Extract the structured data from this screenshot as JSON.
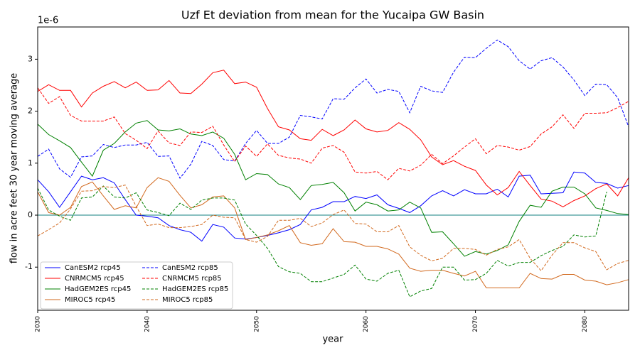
{
  "chart_data": {
    "type": "line",
    "title": "Uzf Et deviation from mean for the Yucaipa GW Basin",
    "x_label": "year",
    "y_label": "flow in acre feet 30 year moving average",
    "y_offset_text": "1e-6",
    "x": [
      2030,
      2031,
      2032,
      2033,
      2034,
      2035,
      2036,
      2037,
      2038,
      2039,
      2040,
      2041,
      2042,
      2043,
      2044,
      2045,
      2046,
      2047,
      2048,
      2049,
      2050,
      2051,
      2052,
      2053,
      2054,
      2055,
      2056,
      2057,
      2058,
      2059,
      2060,
      2061,
      2062,
      2063,
      2064,
      2065,
      2066,
      2067,
      2068,
      2069,
      2070,
      2071,
      2072,
      2073,
      2074,
      2075,
      2076,
      2077,
      2078,
      2079,
      2080,
      2081,
      2082,
      2083,
      2084
    ],
    "xlim": [
      2030,
      2084
    ],
    "xticks": [
      2030,
      2040,
      2050,
      2060,
      2070,
      2080
    ],
    "ylim": [
      -1.83,
      3.62
    ],
    "yticks": [
      -1,
      0,
      1,
      2,
      3
    ],
    "reference_line": 0,
    "reference_color": "#108080",
    "legend_position": "lower left",
    "series": [
      {
        "name": "CanESM2 rcp45",
        "color": "#0000ff",
        "linestyle": "solid",
        "values": [
          0.68,
          0.45,
          0.15,
          0.45,
          0.75,
          0.68,
          0.72,
          0.62,
          0.3,
          0.0,
          -0.02,
          -0.05,
          -0.2,
          -0.28,
          -0.33,
          -0.5,
          -0.18,
          -0.23,
          -0.44,
          -0.46,
          -0.43,
          -0.39,
          -0.34,
          -0.28,
          -0.18,
          0.1,
          0.15,
          0.26,
          0.26,
          0.36,
          0.32,
          0.39,
          0.2,
          0.13,
          0.05,
          0.18,
          0.37,
          0.47,
          0.37,
          0.49,
          0.41,
          0.41,
          0.5,
          0.35,
          0.75,
          0.77,
          0.41,
          0.42,
          0.43,
          0.83,
          0.81,
          0.63,
          0.61,
          0.52,
          0.57
        ]
      },
      {
        "name": "CNRMCM5 rcp45",
        "color": "#ff0000",
        "linestyle": "solid",
        "values": [
          2.38,
          2.51,
          2.4,
          2.4,
          2.08,
          2.35,
          2.48,
          2.57,
          2.45,
          2.56,
          2.4,
          2.41,
          2.59,
          2.35,
          2.34,
          2.52,
          2.74,
          2.79,
          2.53,
          2.56,
          2.46,
          2.05,
          1.7,
          1.64,
          1.47,
          1.44,
          1.65,
          1.53,
          1.64,
          1.83,
          1.66,
          1.6,
          1.63,
          1.78,
          1.65,
          1.45,
          1.12,
          0.97,
          1.05,
          0.94,
          0.86,
          0.58,
          0.39,
          0.53,
          0.84,
          0.57,
          0.31,
          0.27,
          0.16,
          0.28,
          0.37,
          0.51,
          0.6,
          0.37,
          0.72
        ]
      },
      {
        "name": "HadGEM2ES rcp45",
        "color": "#008000",
        "linestyle": "solid",
        "values": [
          1.75,
          1.55,
          1.43,
          1.3,
          1.02,
          0.75,
          1.25,
          1.38,
          1.6,
          1.77,
          1.82,
          1.64,
          1.62,
          1.66,
          1.56,
          1.53,
          1.6,
          1.48,
          1.17,
          0.68,
          0.8,
          0.78,
          0.6,
          0.53,
          0.3,
          0.57,
          0.59,
          0.63,
          0.43,
          0.08,
          0.25,
          0.2,
          0.08,
          0.1,
          0.25,
          0.14,
          -0.33,
          -0.32,
          -0.55,
          -0.79,
          -0.7,
          -0.75,
          -0.68,
          -0.57,
          -0.12,
          0.19,
          0.15,
          0.46,
          0.54,
          0.54,
          0.41,
          0.14,
          0.09,
          0.03,
          0.01
        ]
      },
      {
        "name": "MIROC5 rcp45",
        "color": "#d2691e",
        "linestyle": "solid",
        "values": [
          0.45,
          0.05,
          0.0,
          0.15,
          0.55,
          0.64,
          0.37,
          0.11,
          0.18,
          0.14,
          0.53,
          0.72,
          0.65,
          0.38,
          0.14,
          0.2,
          0.35,
          0.37,
          0.14,
          -0.47,
          -0.43,
          -0.38,
          -0.3,
          -0.2,
          -0.53,
          -0.58,
          -0.55,
          -0.26,
          -0.51,
          -0.52,
          -0.6,
          -0.6,
          -0.65,
          -0.75,
          -1.02,
          -1.08,
          -1.06,
          -1.06,
          -1.12,
          -1.17,
          -1.08,
          -1.4,
          -1.4,
          -1.4,
          -1.4,
          -1.12,
          -1.22,
          -1.23,
          -1.14,
          -1.14,
          -1.25,
          -1.27,
          -1.34,
          -1.3,
          -1.24
        ]
      },
      {
        "name": "CanESM2 rcp85",
        "color": "#0000ff",
        "linestyle": "dashed",
        "values": [
          1.13,
          1.27,
          0.89,
          0.73,
          1.12,
          1.14,
          1.36,
          1.3,
          1.35,
          1.35,
          1.4,
          1.13,
          1.14,
          0.71,
          0.98,
          1.42,
          1.34,
          1.07,
          1.04,
          1.38,
          1.63,
          1.38,
          1.38,
          1.5,
          1.92,
          1.89,
          1.85,
          2.24,
          2.23,
          2.45,
          2.62,
          2.35,
          2.42,
          2.38,
          1.97,
          2.48,
          2.39,
          2.36,
          2.75,
          3.04,
          3.03,
          3.21,
          3.37,
          3.24,
          2.97,
          2.81,
          2.97,
          3.03,
          2.85,
          2.6,
          2.3,
          2.52,
          2.51,
          2.26,
          1.7
        ]
      },
      {
        "name": "CNRMCM5 rcp85",
        "color": "#ff0000",
        "linestyle": "dashed",
        "values": [
          2.45,
          2.15,
          2.28,
          1.92,
          1.81,
          1.81,
          1.81,
          1.89,
          1.57,
          1.44,
          1.28,
          1.62,
          1.39,
          1.34,
          1.6,
          1.59,
          1.71,
          1.35,
          1.03,
          1.33,
          1.13,
          1.37,
          1.15,
          1.1,
          1.08,
          1.0,
          1.29,
          1.34,
          1.21,
          0.83,
          0.81,
          0.84,
          0.68,
          0.9,
          0.85,
          0.96,
          1.17,
          0.99,
          1.14,
          1.31,
          1.47,
          1.18,
          1.34,
          1.31,
          1.25,
          1.32,
          1.56,
          1.7,
          1.93,
          1.67,
          1.96,
          1.96,
          1.97,
          2.07,
          2.19
        ]
      },
      {
        "name": "HadGEM2ES rcp85",
        "color": "#008000",
        "linestyle": "dashed",
        "values": [
          0.52,
          0.1,
          -0.02,
          -0.1,
          0.33,
          0.35,
          0.56,
          0.35,
          0.33,
          0.43,
          0.1,
          0.05,
          -0.01,
          0.23,
          0.11,
          0.29,
          0.33,
          0.33,
          0.29,
          -0.17,
          -0.39,
          -0.64,
          -0.99,
          -1.09,
          -1.12,
          -1.28,
          -1.28,
          -1.21,
          -1.14,
          -0.96,
          -1.23,
          -1.27,
          -1.12,
          -1.06,
          -1.57,
          -1.46,
          -1.41,
          -1.0,
          -1.0,
          -1.25,
          -1.24,
          -1.12,
          -0.87,
          -0.98,
          -0.91,
          -0.91,
          -0.78,
          -0.68,
          -0.6,
          -0.38,
          -0.42,
          -0.4,
          0.45,
          null,
          null
        ]
      },
      {
        "name": "MIROC5 rcp85",
        "color": "#d2691e",
        "linestyle": "dashed",
        "values": [
          -0.4,
          -0.28,
          -0.15,
          0.12,
          0.46,
          0.47,
          0.55,
          0.53,
          0.58,
          0.17,
          -0.2,
          -0.17,
          -0.24,
          -0.24,
          -0.22,
          -0.18,
          0.0,
          -0.04,
          -0.05,
          -0.47,
          -0.52,
          -0.41,
          -0.1,
          -0.1,
          -0.06,
          -0.22,
          -0.15,
          0.01,
          0.1,
          -0.16,
          -0.17,
          -0.32,
          -0.32,
          -0.2,
          -0.61,
          -0.77,
          -0.88,
          -0.83,
          -0.64,
          -0.64,
          -0.66,
          -0.77,
          -0.66,
          -0.61,
          -0.47,
          -0.83,
          -1.07,
          -0.77,
          -0.53,
          -0.53,
          -0.63,
          -0.7,
          -1.05,
          -0.93,
          -0.87
        ]
      }
    ]
  }
}
